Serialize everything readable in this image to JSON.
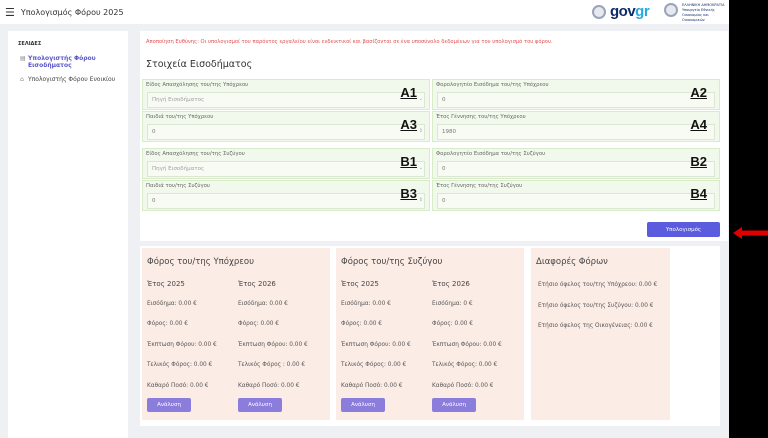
{
  "header": {
    "menu_icon": "hamburger-icon",
    "title": "Υπολογισμός Φόρου 2025",
    "brand": "govgr",
    "ministry": "ΕΛΛΗΝΙΚΗ ΔΗΜΟΚΡΑΤΙΑ Υπουργείο Εθνικής Οικονομίας και Οικονομικών"
  },
  "sidebar": {
    "heading": "ΣΕΛΙΔΕΣ",
    "items": [
      {
        "label": "Υπολογιστής Φόρου Εισοδήματος",
        "icon": "document-icon",
        "active": true
      },
      {
        "label": "Υπολογιστής Φόρου Ενοικίου",
        "icon": "building-icon",
        "active": false
      }
    ]
  },
  "form": {
    "disclaimer": "Αποποίηση Ευθύνης: Οι υπολογισμοί του παρόντος εργαλείου είναι ενδεικτικοί και βασίζονται σε ένα υποσύνολο δεδομένων για τον υπολογισμό του φόρου.",
    "section_title": "Στοιχεία Εισοδήματος",
    "fields": [
      {
        "tag": "A1",
        "label": "Είδος Απασχόλησης του/της Υπόχρεου",
        "value": "Πηγή Εισοδήματος",
        "placeholder": true
      },
      {
        "tag": "A2",
        "label": "Φορολογητέο Εισόδημα του/της Υπόχρεου",
        "value": "0"
      },
      {
        "tag": "A3",
        "label": "Παιδιά του/της Υπόχρεου",
        "value": "0"
      },
      {
        "tag": "A4",
        "label": "Έτος Γέννησης του/της Υπόχρεου",
        "value": "1980"
      },
      {
        "tag": "B1",
        "label": "Είδος Απασχόλησης του/της Συζύγου",
        "value": "Πηγή Εισοδήματος",
        "placeholder": true
      },
      {
        "tag": "B2",
        "label": "Φορολογητέο Εισόδημα του/της Συζύγου",
        "value": "0"
      },
      {
        "tag": "B3",
        "label": "Παιδιά του/της Συζύγου",
        "value": "0"
      },
      {
        "tag": "B4",
        "label": "Έτος Γέννησης του/της Συζύγου",
        "value": "0"
      }
    ],
    "calculate_label": "Υπολογισμός"
  },
  "results": {
    "primary": {
      "title": "Φόρος του/της Υπόχρεου",
      "cols": [
        {
          "year": "Έτος 2025",
          "rows": [
            "Εισόδημα: 0.00 €",
            "Φόρος: 0.00 €",
            "Έκπτωση Φόρου: 0.00 €",
            "Τελικός Φόρος: 0.00 €",
            "Καθαρό Ποσό: 0.00 €"
          ],
          "button": "Ανάλυση"
        },
        {
          "year": "Έτος 2026",
          "rows": [
            "Εισόδημα: 0.00 €",
            "Φόρος: 0.00 €",
            "Έκπτωση Φόρου: 0.00 €",
            "Τελικός Φόρος : 0.00 €",
            "Καθαρό Ποσό: 0.00 €"
          ],
          "button": "Ανάλυση"
        }
      ]
    },
    "spouse": {
      "title": "Φόρος του/της Συζύγου",
      "cols": [
        {
          "year": "Έτος 2025",
          "rows": [
            "Εισόδημα: 0.00 €",
            "Φόρος: 0.00 €",
            "Έκπτωση Φόρου: 0.00 €",
            "Τελικός Φόρος: 0.00 €",
            "Καθαρό Ποσό: 0.00 €"
          ],
          "button": "Ανάλυση"
        },
        {
          "year": "Έτος 2026",
          "rows": [
            "Εισόδημα: 0 €",
            "Φόρος: 0.00 €",
            "Έκπτωση Φόρου: 0.00 €",
            "Τελικός Φόρος: 0.00 €",
            "Καθαρό Ποσό: 0.00 €"
          ],
          "button": "Ανάλυση"
        }
      ]
    },
    "differences": {
      "title": "Διαφορές Φόρων",
      "rows": [
        "Ετήσιο όφελος του/της Υπόχρεου: 0.00 €",
        "Ετήσιο όφελος του/της Συζύγου: 0.00 €",
        "Ετήσιο όφελος της Οικογένειας: 0.00 €"
      ]
    }
  },
  "colors": {
    "accent": "#5b5be0",
    "panel": "#fcece6",
    "field": "#f1f8ec",
    "disclaimer": "#e15050",
    "arrow": "#e00000"
  }
}
